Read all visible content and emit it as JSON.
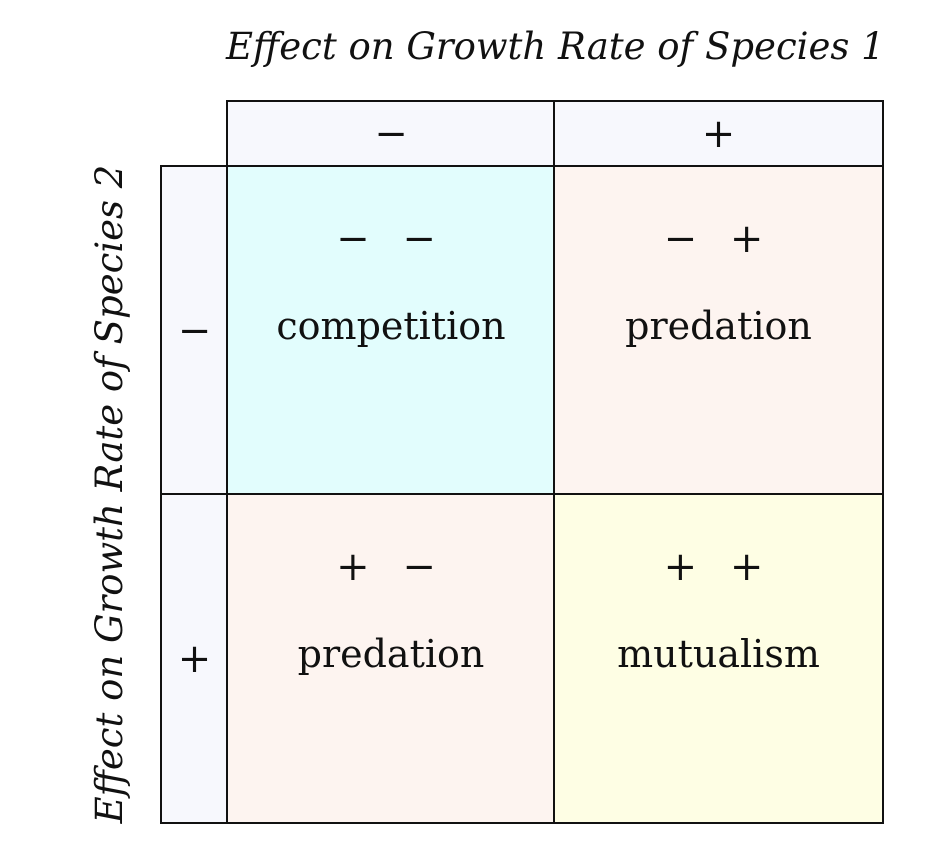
{
  "axis": {
    "top_label": "Effect on Growth Rate of Species 1",
    "left_label": "Effect on Growth Rate of Species 2"
  },
  "column_headers": [
    "−",
    "+"
  ],
  "row_headers": [
    "−",
    "+"
  ],
  "cells": [
    [
      {
        "signs": "− −",
        "name": "competition",
        "color": "#e2fdfd"
      },
      {
        "signs": "− +",
        "name": "predation",
        "color": "#fdf4f0"
      }
    ],
    [
      {
        "signs": "+ −",
        "name": "predation",
        "color": "#fdf4f0"
      },
      {
        "signs": "+ +",
        "name": "mutualism",
        "color": "#fefee4"
      }
    ]
  ],
  "colors": {
    "header_bg": "#f7f8fd",
    "border": "#111111"
  }
}
